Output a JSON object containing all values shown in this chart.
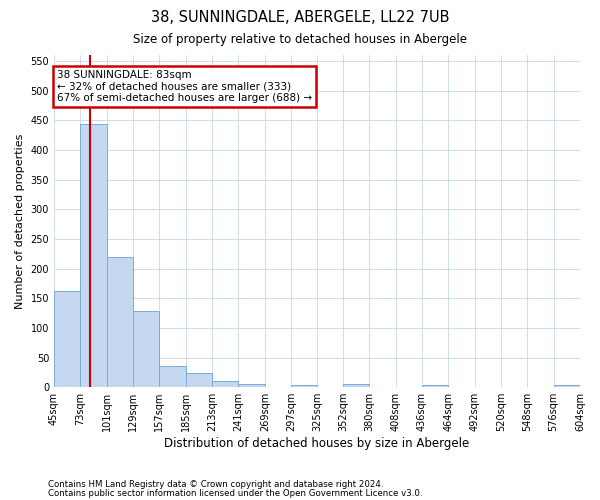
{
  "title": "38, SUNNINGDALE, ABERGELE, LL22 7UB",
  "subtitle": "Size of property relative to detached houses in Abergele",
  "xlabel": "Distribution of detached houses by size in Abergele",
  "ylabel": "Number of detached properties",
  "footer_line1": "Contains HM Land Registry data © Crown copyright and database right 2024.",
  "footer_line2": "Contains public sector information licensed under the Open Government Licence v3.0.",
  "bins": [
    45,
    73,
    101,
    129,
    157,
    185,
    213,
    241,
    269,
    297,
    325,
    352,
    380,
    408,
    436,
    464,
    492,
    520,
    548,
    576,
    604
  ],
  "bar_heights": [
    163,
    443,
    220,
    129,
    36,
    24,
    10,
    5,
    0,
    4,
    0,
    5,
    0,
    0,
    4,
    0,
    0,
    0,
    0,
    4
  ],
  "bar_color": "#c5d8ef",
  "bar_edgecolor": "#7aadd4",
  "property_size": 83,
  "annotation_title": "38 SUNNINGDALE: 83sqm",
  "annotation_line1": "← 32% of detached houses are smaller (333)",
  "annotation_line2": "67% of semi-detached houses are larger (688) →",
  "annotation_box_color": "#ffffff",
  "annotation_box_edgecolor": "#cc0000",
  "vline_color": "#cc0000",
  "ylim": [
    0,
    560
  ],
  "yticks": [
    0,
    50,
    100,
    150,
    200,
    250,
    300,
    350,
    400,
    450,
    500,
    550
  ],
  "background_color": "#ffffff",
  "grid_color": "#c8d8e8"
}
